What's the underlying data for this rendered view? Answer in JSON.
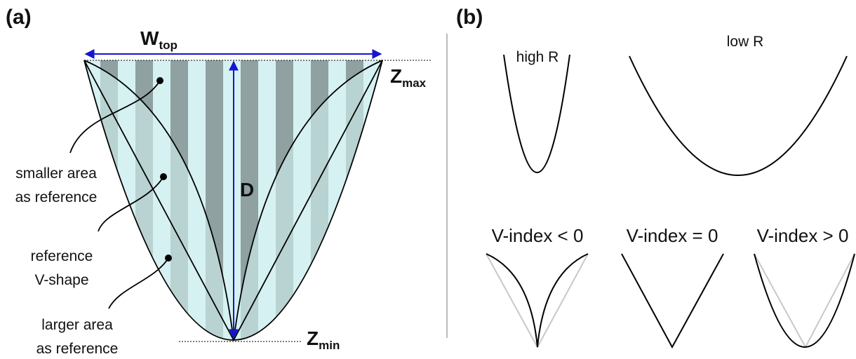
{
  "panels": [
    {
      "label": "(a)",
      "width_label": {
        "main": "W",
        "sub": "top"
      },
      "z_max": {
        "main": "Z",
        "sub": "max"
      },
      "z_min": {
        "main": "Z",
        "sub": "min"
      },
      "depth_label": "D",
      "annotations": [
        [
          "smaller area",
          "as reference"
        ],
        [
          "reference",
          "V-shape"
        ],
        [
          "larger area",
          "as reference"
        ]
      ]
    },
    {
      "label": "(b)",
      "curves": [
        "high R",
        "low R"
      ],
      "v_shapes": [
        "V-index < 0",
        "V-index = 0",
        "V-index > 0"
      ]
    }
  ]
}
